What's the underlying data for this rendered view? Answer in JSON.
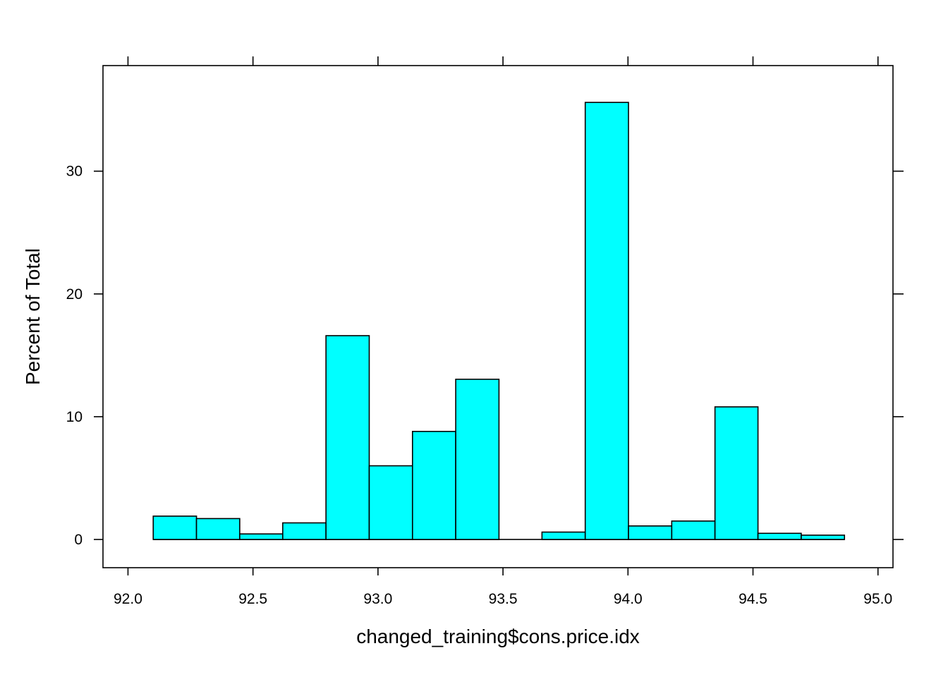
{
  "chart_data": {
    "type": "bar",
    "xlabel": "changed_training$cons.price.idx",
    "ylabel": "Percent of Total",
    "xlim": [
      91.9,
      95.06
    ],
    "ylim": [
      -2.3,
      38.6
    ],
    "x_ticks": [
      "92.0",
      "92.5",
      "93.0",
      "93.5",
      "94.0",
      "94.5",
      "95.0"
    ],
    "y_ticks": [
      "0",
      "10",
      "20",
      "30"
    ],
    "bin_edges": [
      92.101,
      92.274,
      92.447,
      92.619,
      92.792,
      92.965,
      93.138,
      93.311,
      93.484,
      93.656,
      93.829,
      94.002,
      94.175,
      94.348,
      94.52,
      94.693,
      94.866
    ],
    "values": [
      1.9,
      1.7,
      0.45,
      1.35,
      16.6,
      6.0,
      8.8,
      13.05,
      0.0,
      0.6,
      35.6,
      1.1,
      1.5,
      10.8,
      0.5,
      0.35
    ],
    "fill_color": "#00FFFF",
    "stroke_color": "#000000",
    "grid": false,
    "legend": "none"
  }
}
